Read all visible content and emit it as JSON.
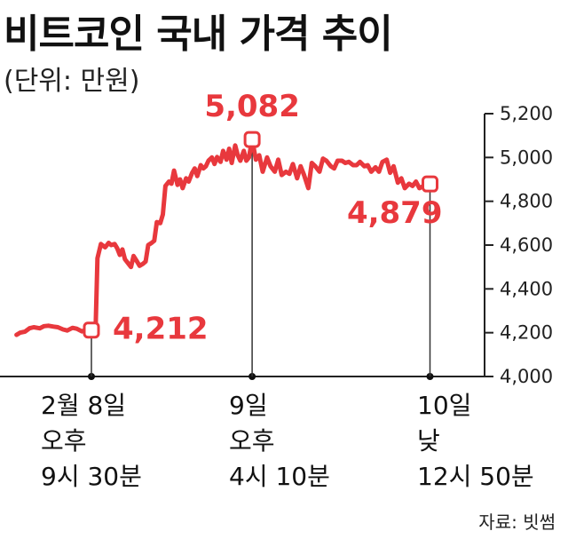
{
  "header": {
    "title": "비트코인 국내 가격 추이",
    "subtitle": "(단위: 만원)"
  },
  "source": "자료: 빗썸",
  "colors": {
    "line": "#e8383d",
    "axis": "#333333",
    "text": "#111111"
  },
  "chart_data": {
    "type": "line",
    "title": "비트코인 국내 가격 추이",
    "subtitle": "(단위: 만원)",
    "unit": "만원",
    "ylim": [
      4000,
      5200
    ],
    "yticks": [
      "5,200",
      "5,000",
      "4,800",
      "4,600",
      "4,400",
      "4,200",
      "4,000"
    ],
    "ytick_values": [
      5200,
      5000,
      4800,
      4600,
      4400,
      4200,
      4000
    ],
    "x_marks": [
      {
        "lines": [
          "2월 8일",
          "오후",
          "9시 30분"
        ],
        "x": 0
      },
      {
        "lines": [
          "9일",
          "오후",
          "4시 10분"
        ],
        "x": 18.67
      },
      {
        "lines": [
          "10일",
          "낮",
          "12시 50분"
        ],
        "x": 39.33
      }
    ],
    "series": [
      {
        "x": [
          -8.7,
          -8.3,
          -7.7,
          -7.2,
          -6.7,
          -6.0,
          -5.5,
          -5.0,
          -4.4,
          -3.9,
          -3.3,
          -2.8,
          -2.2,
          -1.7,
          -1.1,
          -0.6,
          0,
          0.5,
          0.7,
          1.1,
          1.6,
          2.0,
          2.3,
          2.7,
          3.0,
          3.3,
          3.6,
          3.9,
          4.2,
          4.6,
          4.9,
          5.3,
          5.6,
          6.0,
          6.3,
          6.6,
          7.0,
          7.3,
          7.6,
          8.0,
          8.3,
          8.6,
          9.0,
          9.3,
          9.6,
          10.0,
          10.3,
          10.6,
          11.0,
          11.3,
          11.7,
          12.0,
          12.3,
          12.7,
          13.0,
          13.3,
          13.6,
          14.0,
          14.3,
          14.6,
          15.0,
          15.3,
          15.7,
          16.0,
          16.3,
          16.7,
          17.0,
          17.3,
          17.7,
          18.0,
          18.3,
          18.67,
          19.1,
          19.5,
          19.9,
          20.4,
          20.8,
          21.3,
          21.7,
          22.1,
          22.6,
          23.0,
          23.4,
          23.9,
          24.3,
          24.7,
          25.2,
          25.6,
          26.0,
          26.5,
          26.9,
          27.3,
          27.8,
          28.2,
          28.6,
          29.1,
          29.5,
          29.9,
          30.4,
          30.8,
          31.2,
          31.7,
          32.1,
          32.5,
          33.0,
          33.4,
          33.8,
          34.3,
          34.7,
          35.1,
          35.6,
          36.0,
          36.4,
          36.9,
          37.3,
          37.7,
          38.1,
          38.6,
          39.0,
          39.33
        ],
        "y": [
          4190,
          4200,
          4205,
          4220,
          4225,
          4220,
          4230,
          4232,
          4228,
          4225,
          4215,
          4210,
          4222,
          4218,
          4206,
          4214,
          4212,
          4230,
          4540,
          4605,
          4590,
          4610,
          4600,
          4605,
          4585,
          4555,
          4580,
          4535,
          4520,
          4500,
          4550,
          4525,
          4505,
          4515,
          4525,
          4600,
          4610,
          4620,
          4705,
          4700,
          4740,
          4870,
          4890,
          4880,
          4940,
          4875,
          4900,
          4860,
          4905,
          4890,
          4930,
          4950,
          4915,
          4965,
          4950,
          4960,
          4985,
          5000,
          4970,
          5002,
          4980,
          5030,
          4990,
          5040,
          4975,
          5055,
          5010,
          4985,
          5030,
          4985,
          5000,
          5082,
          4990,
          5010,
          4935,
          5000,
          4960,
          4935,
          4990,
          4920,
          4935,
          4925,
          4970,
          4905,
          4960,
          4920,
          4860,
          4975,
          4960,
          4935,
          4995,
          4985,
          4960,
          4950,
          4985,
          4985,
          4975,
          4980,
          4965,
          4965,
          4980,
          4960,
          4965,
          4935,
          4955,
          4935,
          4980,
          4990,
          4930,
          4960,
          4885,
          4905,
          4860,
          4880,
          4870,
          4890,
          4860,
          4870,
          4885,
          4879
        ]
      }
    ],
    "annotations": [
      {
        "label": "4,212",
        "x": 0,
        "y": 4212
      },
      {
        "label": "5,082",
        "x": 18.67,
        "y": 5082
      },
      {
        "label": "4,879",
        "x": 39.33,
        "y": 4879
      }
    ],
    "grid": false,
    "legend": "none"
  }
}
